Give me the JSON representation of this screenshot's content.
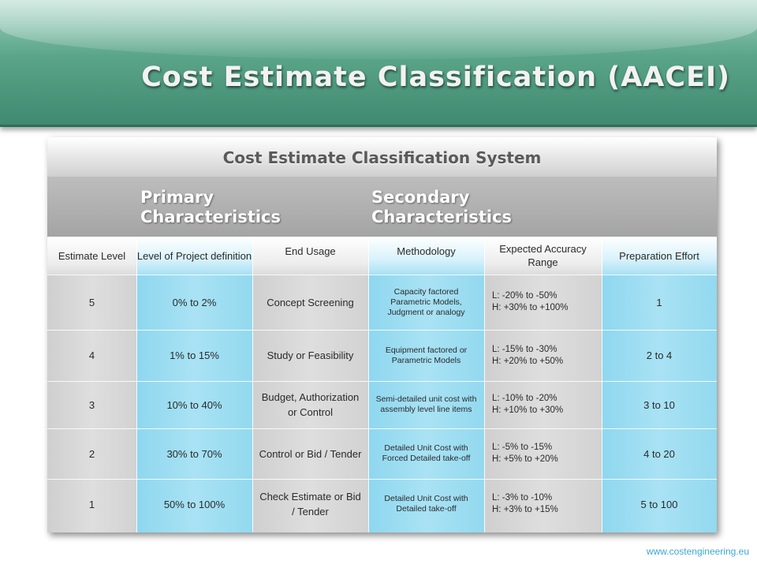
{
  "slide": {
    "title": "Cost Estimate Classification (AACEI)",
    "footer": "www.costengineering.eu"
  },
  "table": {
    "title": "Cost Estimate Classification System",
    "primary_label": "Primary Characteristics",
    "secondary_label": "Secondary Characteristics",
    "headers": [
      "Estimate Level",
      "Level of Project definition",
      "End Usage",
      "Methodology",
      "Expected Accuracy Range",
      "Preparation Effort"
    ],
    "rows": [
      {
        "level": "5",
        "definition": "0% to 2%",
        "usage": "Concept Screening",
        "methodology": "Capacity factored Parametric Models, Judgment or analogy",
        "accuracy_low": "L: -20% to -50%",
        "accuracy_high": "H: +30% to +100%",
        "effort": "1"
      },
      {
        "level": "4",
        "definition": "1% to 15%",
        "usage": "Study or Feasibility",
        "methodology": "Equipment factored or Parametric Models",
        "accuracy_low": "L: -15% to -30%",
        "accuracy_high": "H: +20% to +50%",
        "effort": "2 to 4"
      },
      {
        "level": "3",
        "definition": "10% to 40%",
        "usage": "Budget, Authorization or Control",
        "methodology": "Semi-detailed unit cost with assembly level line items",
        "accuracy_low": "L: -10% to -20%",
        "accuracy_high": "H: +10% to +30%",
        "effort": "3 to 10"
      },
      {
        "level": "2",
        "definition": "30% to 70%",
        "usage": "Control or Bid / Tender",
        "methodology": "Detailed Unit Cost with Forced Detailed take-off",
        "accuracy_low": "L: -5% to -15%",
        "accuracy_high": "H: +5% to +20%",
        "effort": "4 to 20"
      },
      {
        "level": "1",
        "definition": "50% to 100%",
        "usage": "Check Estimate or Bid / Tender",
        "methodology": "Detailed Unit Cost with Detailed take-off",
        "accuracy_low": "L: -3% to -10%",
        "accuracy_high": "H: +3% to +15%",
        "effort": "5 to 100"
      }
    ]
  }
}
